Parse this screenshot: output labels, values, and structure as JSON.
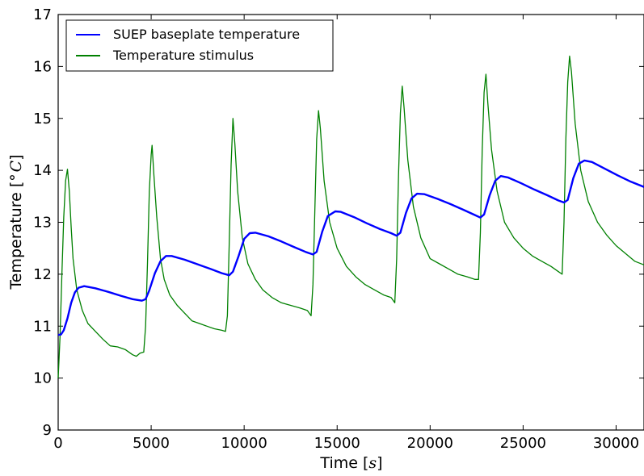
{
  "chart_data": {
    "type": "line",
    "title": "",
    "xlabel": "Time [s]",
    "ylabel": "Temperature [° C]",
    "xlim": [
      0,
      31500
    ],
    "ylim": [
      9,
      17
    ],
    "x_ticks": [
      0,
      5000,
      10000,
      15000,
      20000,
      25000,
      30000
    ],
    "y_ticks": [
      9,
      10,
      11,
      12,
      13,
      14,
      15,
      16,
      17
    ],
    "x_tick_labels": [
      "0",
      "5000",
      "10000",
      "15000",
      "20000",
      "25000",
      "30000"
    ],
    "y_tick_labels": [
      "9",
      "10",
      "11",
      "12",
      "13",
      "14",
      "15",
      "16",
      "17"
    ],
    "grid": false,
    "legend_position": "upper-left",
    "series": [
      {
        "name": "SUEP baseplate temperature",
        "color": "#0000ff",
        "points": [
          [
            0,
            10.83
          ],
          [
            150,
            10.84
          ],
          [
            300,
            10.92
          ],
          [
            500,
            11.15
          ],
          [
            700,
            11.45
          ],
          [
            900,
            11.65
          ],
          [
            1100,
            11.74
          ],
          [
            1400,
            11.77
          ],
          [
            2000,
            11.73
          ],
          [
            2700,
            11.66
          ],
          [
            3400,
            11.58
          ],
          [
            4000,
            11.52
          ],
          [
            4500,
            11.49
          ],
          [
            4700,
            11.52
          ],
          [
            4900,
            11.69
          ],
          [
            5200,
            12.02
          ],
          [
            5500,
            12.25
          ],
          [
            5800,
            12.35
          ],
          [
            6100,
            12.35
          ],
          [
            6800,
            12.28
          ],
          [
            7500,
            12.19
          ],
          [
            8200,
            12.1
          ],
          [
            8800,
            12.02
          ],
          [
            9200,
            11.98
          ],
          [
            9400,
            12.05
          ],
          [
            9700,
            12.35
          ],
          [
            10000,
            12.68
          ],
          [
            10300,
            12.79
          ],
          [
            10600,
            12.8
          ],
          [
            11300,
            12.73
          ],
          [
            12000,
            12.63
          ],
          [
            12700,
            12.52
          ],
          [
            13300,
            12.43
          ],
          [
            13700,
            12.38
          ],
          [
            13900,
            12.43
          ],
          [
            14200,
            12.82
          ],
          [
            14500,
            13.12
          ],
          [
            14900,
            13.21
          ],
          [
            15200,
            13.2
          ],
          [
            15900,
            13.1
          ],
          [
            16600,
            12.98
          ],
          [
            17300,
            12.87
          ],
          [
            17900,
            12.79
          ],
          [
            18200,
            12.74
          ],
          [
            18400,
            12.8
          ],
          [
            18700,
            13.18
          ],
          [
            19000,
            13.46
          ],
          [
            19300,
            13.55
          ],
          [
            19700,
            13.54
          ],
          [
            20400,
            13.45
          ],
          [
            21100,
            13.35
          ],
          [
            21800,
            13.24
          ],
          [
            22400,
            13.14
          ],
          [
            22700,
            13.09
          ],
          [
            22900,
            13.15
          ],
          [
            23200,
            13.52
          ],
          [
            23500,
            13.8
          ],
          [
            23800,
            13.89
          ],
          [
            24200,
            13.86
          ],
          [
            24900,
            13.75
          ],
          [
            25600,
            13.63
          ],
          [
            26300,
            13.52
          ],
          [
            26900,
            13.42
          ],
          [
            27200,
            13.38
          ],
          [
            27400,
            13.43
          ],
          [
            27700,
            13.85
          ],
          [
            28000,
            14.13
          ],
          [
            28300,
            14.19
          ],
          [
            28700,
            14.16
          ],
          [
            29400,
            14.03
          ],
          [
            30100,
            13.9
          ],
          [
            30800,
            13.78
          ],
          [
            31500,
            13.68
          ]
        ]
      },
      {
        "name": "Temperature stimulus",
        "color": "#008000",
        "points": [
          [
            0,
            10.0
          ],
          [
            100,
            10.8
          ],
          [
            200,
            12.0
          ],
          [
            300,
            13.1
          ],
          [
            400,
            13.8
          ],
          [
            500,
            14.02
          ],
          [
            600,
            13.6
          ],
          [
            700,
            12.9
          ],
          [
            800,
            12.3
          ],
          [
            1000,
            11.7
          ],
          [
            1300,
            11.3
          ],
          [
            1600,
            11.05
          ],
          [
            2000,
            10.9
          ],
          [
            2400,
            10.75
          ],
          [
            2800,
            10.62
          ],
          [
            3200,
            10.6
          ],
          [
            3600,
            10.55
          ],
          [
            4000,
            10.45
          ],
          [
            4200,
            10.42
          ],
          [
            4400,
            10.48
          ],
          [
            4600,
            10.5
          ],
          [
            4700,
            11.0
          ],
          [
            4800,
            12.2
          ],
          [
            4900,
            13.6
          ],
          [
            5000,
            14.3
          ],
          [
            5050,
            14.48
          ],
          [
            5150,
            13.9
          ],
          [
            5300,
            13.1
          ],
          [
            5500,
            12.3
          ],
          [
            5700,
            11.9
          ],
          [
            6000,
            11.6
          ],
          [
            6400,
            11.4
          ],
          [
            6800,
            11.25
          ],
          [
            7200,
            11.1
          ],
          [
            7600,
            11.05
          ],
          [
            8000,
            11.0
          ],
          [
            8400,
            10.95
          ],
          [
            8800,
            10.92
          ],
          [
            9000,
            10.9
          ],
          [
            9100,
            11.2
          ],
          [
            9200,
            12.6
          ],
          [
            9300,
            14.1
          ],
          [
            9400,
            15.0
          ],
          [
            9500,
            14.5
          ],
          [
            9650,
            13.6
          ],
          [
            9900,
            12.7
          ],
          [
            10200,
            12.2
          ],
          [
            10600,
            11.9
          ],
          [
            11000,
            11.7
          ],
          [
            11500,
            11.55
          ],
          [
            12000,
            11.45
          ],
          [
            12500,
            11.4
          ],
          [
            13000,
            11.35
          ],
          [
            13400,
            11.3
          ],
          [
            13600,
            11.2
          ],
          [
            13700,
            11.8
          ],
          [
            13800,
            13.2
          ],
          [
            13900,
            14.6
          ],
          [
            14000,
            15.15
          ],
          [
            14100,
            14.8
          ],
          [
            14300,
            13.8
          ],
          [
            14600,
            13.0
          ],
          [
            15000,
            12.5
          ],
          [
            15500,
            12.15
          ],
          [
            16000,
            11.95
          ],
          [
            16500,
            11.8
          ],
          [
            17000,
            11.7
          ],
          [
            17500,
            11.6
          ],
          [
            17900,
            11.55
          ],
          [
            18100,
            11.45
          ],
          [
            18200,
            12.3
          ],
          [
            18300,
            13.9
          ],
          [
            18400,
            15.1
          ],
          [
            18500,
            15.62
          ],
          [
            18600,
            15.2
          ],
          [
            18800,
            14.2
          ],
          [
            19100,
            13.3
          ],
          [
            19500,
            12.7
          ],
          [
            20000,
            12.3
          ],
          [
            20500,
            12.2
          ],
          [
            21000,
            12.1
          ],
          [
            21500,
            12.0
          ],
          [
            22000,
            11.95
          ],
          [
            22400,
            11.9
          ],
          [
            22600,
            11.9
          ],
          [
            22700,
            12.8
          ],
          [
            22800,
            14.4
          ],
          [
            22900,
            15.5
          ],
          [
            23000,
            15.85
          ],
          [
            23100,
            15.3
          ],
          [
            23300,
            14.4
          ],
          [
            23600,
            13.6
          ],
          [
            24000,
            13.0
          ],
          [
            24500,
            12.7
          ],
          [
            25000,
            12.5
          ],
          [
            25500,
            12.35
          ],
          [
            26000,
            12.25
          ],
          [
            26500,
            12.15
          ],
          [
            26900,
            12.05
          ],
          [
            27100,
            12.0
          ],
          [
            27200,
            13.0
          ],
          [
            27300,
            14.6
          ],
          [
            27400,
            15.7
          ],
          [
            27500,
            16.2
          ],
          [
            27600,
            15.9
          ],
          [
            27800,
            14.9
          ],
          [
            28100,
            14.0
          ],
          [
            28500,
            13.4
          ],
          [
            29000,
            13.0
          ],
          [
            29500,
            12.75
          ],
          [
            30000,
            12.55
          ],
          [
            30500,
            12.4
          ],
          [
            31000,
            12.25
          ],
          [
            31500,
            12.18
          ]
        ]
      }
    ]
  }
}
